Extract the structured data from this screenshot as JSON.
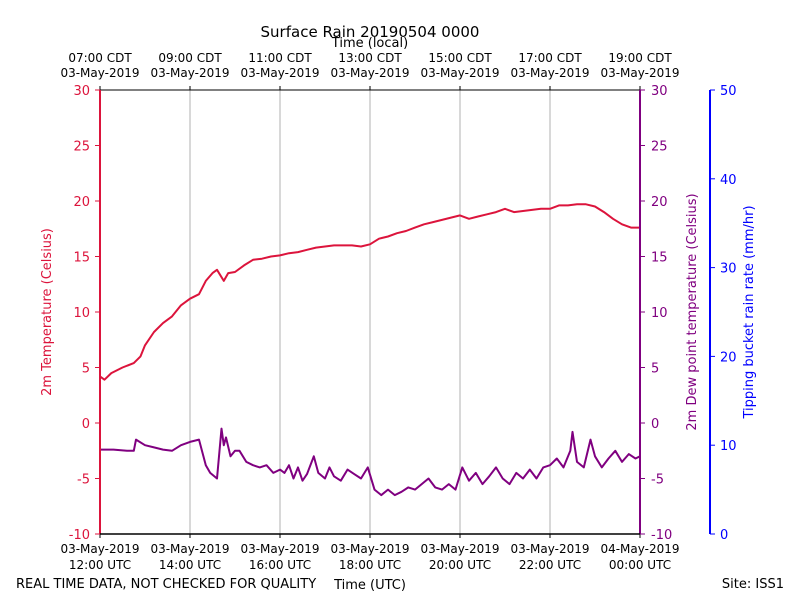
{
  "chart_data": {
    "type": "line",
    "title": "Surface Rain 20190504 0000",
    "top_axis_label": "Time (local)",
    "bottom_axis_label": "Time (UTC)",
    "left_axis_label": "2m Temperature (Celsius)",
    "right_axis_label_1": "2m Dew point temperature (Celsius)",
    "right_axis_label_2": "Tipping bucket rain rate (mm/hr)",
    "footer_left": "REAL TIME DATA, NOT CHECKED FOR QUALITY",
    "footer_right": "Site: ISS1",
    "colors": {
      "temperature": "#dc143c",
      "dewpoint": "#800080",
      "rain": "#0000ff",
      "grid": "#b0b0b0"
    },
    "x_range_hours_utc": [
      12,
      24
    ],
    "y_left_range": [
      -10,
      30
    ],
    "y_rain_range": [
      0,
      50
    ],
    "x_ticks": [
      {
        "h": 12,
        "top1": "07:00 CDT",
        "top2": "03-May-2019",
        "bot1": "03-May-2019",
        "bot2": "12:00 UTC"
      },
      {
        "h": 14,
        "top1": "09:00 CDT",
        "top2": "03-May-2019",
        "bot1": "03-May-2019",
        "bot2": "14:00 UTC"
      },
      {
        "h": 16,
        "top1": "11:00 CDT",
        "top2": "03-May-2019",
        "bot1": "03-May-2019",
        "bot2": "16:00 UTC"
      },
      {
        "h": 18,
        "top1": "13:00 CDT",
        "top2": "03-May-2019",
        "bot1": "03-May-2019",
        "bot2": "18:00 UTC"
      },
      {
        "h": 20,
        "top1": "15:00 CDT",
        "top2": "03-May-2019",
        "bot1": "03-May-2019",
        "bot2": "20:00 UTC"
      },
      {
        "h": 22,
        "top1": "17:00 CDT",
        "top2": "03-May-2019",
        "bot1": "03-May-2019",
        "bot2": "22:00 UTC"
      },
      {
        "h": 24,
        "top1": "19:00 CDT",
        "top2": "03-May-2019",
        "bot1": "04-May-2019",
        "bot2": "00:00 UTC"
      }
    ],
    "y_left_ticks": [
      -10,
      -5,
      0,
      5,
      10,
      15,
      20,
      25,
      30
    ],
    "y_rain_ticks": [
      0,
      10,
      20,
      30,
      40,
      50
    ],
    "series": [
      {
        "name": "2m Temperature (Celsius)",
        "x": [
          12.0,
          12.1,
          12.25,
          12.5,
          12.75,
          12.9,
          13.0,
          13.2,
          13.4,
          13.6,
          13.8,
          14.0,
          14.2,
          14.35,
          14.5,
          14.6,
          14.75,
          14.85,
          15.0,
          15.2,
          15.4,
          15.6,
          15.8,
          16.0,
          16.2,
          16.4,
          16.6,
          16.8,
          17.0,
          17.2,
          17.4,
          17.6,
          17.8,
          18.0,
          18.2,
          18.4,
          18.6,
          18.8,
          19.0,
          19.2,
          19.4,
          19.6,
          19.8,
          20.0,
          20.2,
          20.4,
          20.6,
          20.8,
          21.0,
          21.2,
          21.4,
          21.6,
          21.8,
          22.0,
          22.2,
          22.4,
          22.6,
          22.8,
          23.0,
          23.2,
          23.4,
          23.6,
          23.8,
          24.0
        ],
        "y": [
          4.2,
          3.9,
          4.5,
          5.0,
          5.4,
          6.0,
          7.0,
          8.2,
          9.0,
          9.6,
          10.6,
          11.2,
          11.6,
          12.8,
          13.5,
          13.8,
          12.8,
          13.5,
          13.6,
          14.2,
          14.7,
          14.8,
          15.0,
          15.1,
          15.3,
          15.4,
          15.6,
          15.8,
          15.9,
          16.0,
          16.0,
          16.0,
          15.9,
          16.1,
          16.6,
          16.8,
          17.1,
          17.3,
          17.6,
          17.9,
          18.1,
          18.3,
          18.5,
          18.7,
          18.4,
          18.6,
          18.8,
          19.0,
          19.3,
          19.0,
          19.1,
          19.2,
          19.3,
          19.3,
          19.6,
          19.6,
          19.7,
          19.7,
          19.5,
          19.0,
          18.4,
          17.9,
          17.6,
          17.6
        ]
      },
      {
        "name": "2m Dew point temperature (Celsius)",
        "x": [
          12.0,
          12.3,
          12.6,
          12.75,
          12.8,
          13.0,
          13.2,
          13.4,
          13.6,
          13.8,
          14.0,
          14.2,
          14.35,
          14.45,
          14.6,
          14.7,
          14.75,
          14.8,
          14.9,
          15.0,
          15.1,
          15.25,
          15.4,
          15.55,
          15.7,
          15.85,
          16.0,
          16.1,
          16.2,
          16.3,
          16.4,
          16.5,
          16.6,
          16.75,
          16.85,
          17.0,
          17.1,
          17.2,
          17.35,
          17.5,
          17.65,
          17.8,
          17.95,
          18.1,
          18.25,
          18.4,
          18.55,
          18.7,
          18.85,
          19.0,
          19.15,
          19.3,
          19.45,
          19.6,
          19.75,
          19.9,
          20.05,
          20.2,
          20.35,
          20.5,
          20.65,
          20.8,
          20.95,
          21.1,
          21.25,
          21.4,
          21.55,
          21.7,
          21.85,
          22.0,
          22.15,
          22.3,
          22.45,
          22.5,
          22.6,
          22.75,
          22.9,
          23.0,
          23.15,
          23.3,
          23.45,
          23.6,
          23.75,
          23.9,
          24.0
        ],
        "y": [
          -2.4,
          -2.4,
          -2.5,
          -2.5,
          -1.5,
          -2.0,
          -2.2,
          -2.4,
          -2.5,
          -2.0,
          -1.7,
          -1.5,
          -3.8,
          -4.5,
          -5.0,
          -0.5,
          -2.0,
          -1.3,
          -3.0,
          -2.5,
          -2.5,
          -3.5,
          -3.8,
          -4.0,
          -3.8,
          -4.5,
          -4.2,
          -4.5,
          -3.8,
          -5.0,
          -4.0,
          -5.2,
          -4.6,
          -3.0,
          -4.5,
          -5.0,
          -4.0,
          -4.8,
          -5.2,
          -4.2,
          -4.6,
          -5.0,
          -4.0,
          -6.0,
          -6.5,
          -6.0,
          -6.5,
          -6.2,
          -5.8,
          -6.0,
          -5.5,
          -5.0,
          -5.8,
          -6.0,
          -5.5,
          -6.0,
          -4.0,
          -5.2,
          -4.5,
          -5.5,
          -4.8,
          -4.0,
          -5.0,
          -5.5,
          -4.5,
          -5.0,
          -4.2,
          -5.0,
          -4.0,
          -3.8,
          -3.2,
          -4.0,
          -2.5,
          -0.8,
          -3.5,
          -4.0,
          -1.5,
          -3.0,
          -4.0,
          -3.2,
          -2.5,
          -3.5,
          -2.8,
          -3.2,
          -3.0
        ]
      }
    ]
  }
}
